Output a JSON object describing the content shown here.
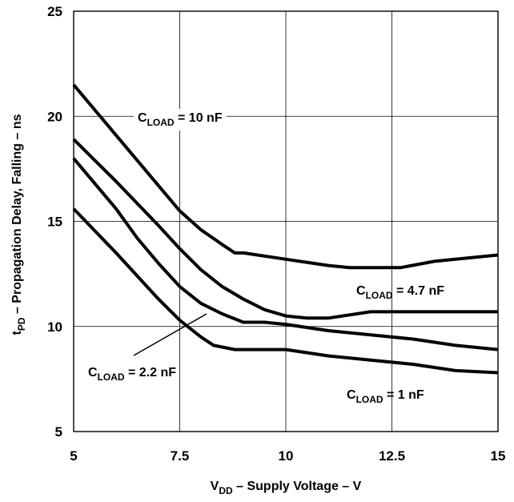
{
  "chart_data": {
    "type": "line",
    "title": "",
    "xlabel": {
      "main": "V",
      "sub": "DD",
      "rest": " – Supply Voltage – V"
    },
    "ylabel": {
      "main": "t",
      "sub": "PD",
      "rest": " – Propagation Delay, Falling – ns"
    },
    "xlim": [
      5,
      15
    ],
    "ylim": [
      5,
      25
    ],
    "x_ticks": [
      5,
      7.5,
      10,
      12.5,
      15
    ],
    "x_tick_labels": [
      "5",
      "7.5",
      "10",
      "12.5",
      "15"
    ],
    "y_ticks": [
      5,
      10,
      15,
      20,
      25
    ],
    "y_tick_labels": [
      "5",
      "10",
      "15",
      "20",
      "25"
    ],
    "grid": true,
    "series": [
      {
        "name": "10 nF",
        "label": {
          "main": "C",
          "sub": "LOAD",
          "rest": " = 10 nF"
        },
        "x": [
          5,
          6,
          7,
          7.5,
          8,
          8.5,
          8.8,
          9,
          10,
          11,
          11.5,
          12,
          12.7,
          13.5,
          15
        ],
        "y": [
          21.5,
          19.1,
          16.7,
          15.5,
          14.6,
          13.9,
          13.5,
          13.5,
          13.2,
          12.9,
          12.8,
          12.8,
          12.8,
          13.1,
          13.4
        ]
      },
      {
        "name": "4.7 nF",
        "label": {
          "main": "C",
          "sub": "LOAD",
          "rest": " = 4.7 nF"
        },
        "x": [
          5,
          6,
          7,
          7.5,
          8,
          8.5,
          9,
          9.5,
          10,
          10.5,
          11,
          12,
          13,
          14,
          15
        ],
        "y": [
          18.9,
          16.9,
          14.8,
          13.7,
          12.7,
          11.9,
          11.3,
          10.8,
          10.5,
          10.4,
          10.4,
          10.7,
          10.7,
          10.7,
          10.7
        ]
      },
      {
        "name": "2.2 nF",
        "label": {
          "main": "C",
          "sub": "LOAD",
          "rest": " = 2.2 nF"
        },
        "x": [
          5,
          6,
          6.5,
          7,
          7.5,
          8,
          8.5,
          9,
          9.5,
          10,
          11,
          12,
          13,
          14,
          15
        ],
        "y": [
          18.0,
          15.6,
          14.2,
          13.0,
          11.9,
          11.1,
          10.6,
          10.2,
          10.2,
          10.1,
          9.8,
          9.6,
          9.4,
          9.1,
          8.9
        ]
      },
      {
        "name": "1 nF",
        "label": {
          "main": "C",
          "sub": "LOAD",
          "rest": " = 1 nF"
        },
        "x": [
          5,
          6,
          7,
          7.5,
          8,
          8.3,
          8.8,
          9,
          10,
          11,
          12,
          13,
          14,
          15
        ],
        "y": [
          15.6,
          13.5,
          11.3,
          10.3,
          9.5,
          9.1,
          8.9,
          8.9,
          8.9,
          8.6,
          8.4,
          8.2,
          7.9,
          7.8
        ]
      }
    ]
  }
}
